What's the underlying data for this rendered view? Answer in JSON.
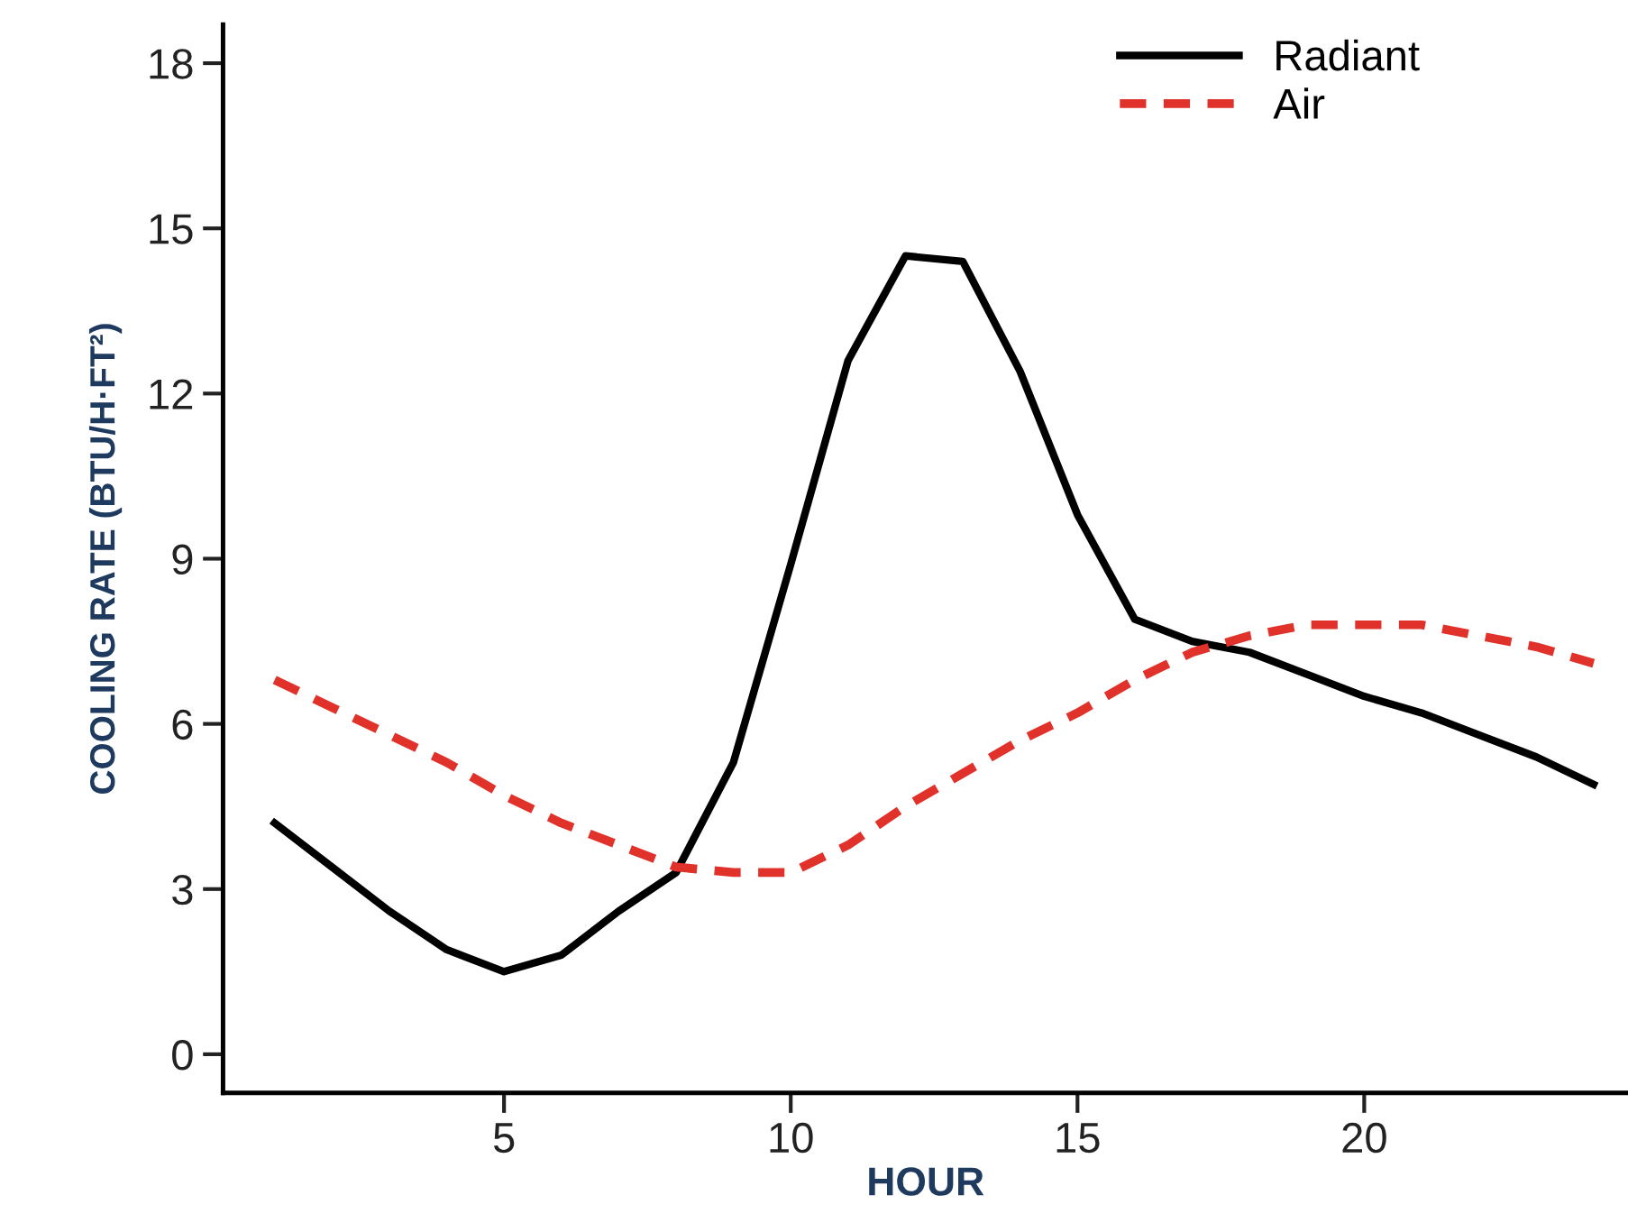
{
  "chart_data": {
    "type": "line",
    "xlabel": "HOUR",
    "ylabel": "COOLING RATE (BTU/H·FT²)",
    "x": [
      1,
      2,
      3,
      4,
      5,
      6,
      7,
      8,
      9,
      10,
      11,
      12,
      13,
      14,
      15,
      16,
      17,
      18,
      19,
      20,
      21,
      22,
      23,
      24
    ],
    "xlim": [
      0.1,
      24.6
    ],
    "xticks": [
      5,
      10,
      15,
      20
    ],
    "ylim": [
      -0.7,
      18.7
    ],
    "yticks": [
      0,
      3,
      6,
      9,
      12,
      15,
      18
    ],
    "series": [
      {
        "name": "Radiant",
        "color": "#000000",
        "line_style": "solid",
        "values": [
          4.2,
          3.4,
          2.6,
          1.9,
          1.5,
          1.8,
          2.6,
          3.3,
          5.3,
          8.9,
          12.6,
          14.5,
          14.4,
          12.4,
          9.8,
          7.9,
          7.5,
          7.3,
          6.9,
          6.5,
          6.2,
          5.8,
          5.4,
          4.9
        ]
      },
      {
        "name": "Air",
        "color": "#e0322b",
        "line_style": "dashed",
        "values": [
          6.8,
          6.3,
          5.8,
          5.3,
          4.7,
          4.2,
          3.8,
          3.4,
          3.3,
          3.3,
          3.8,
          4.5,
          5.1,
          5.7,
          6.2,
          6.8,
          7.3,
          7.6,
          7.8,
          7.8,
          7.8,
          7.6,
          7.4,
          7.1
        ]
      }
    ],
    "legend": "top right",
    "grid": false,
    "marker": "none"
  }
}
